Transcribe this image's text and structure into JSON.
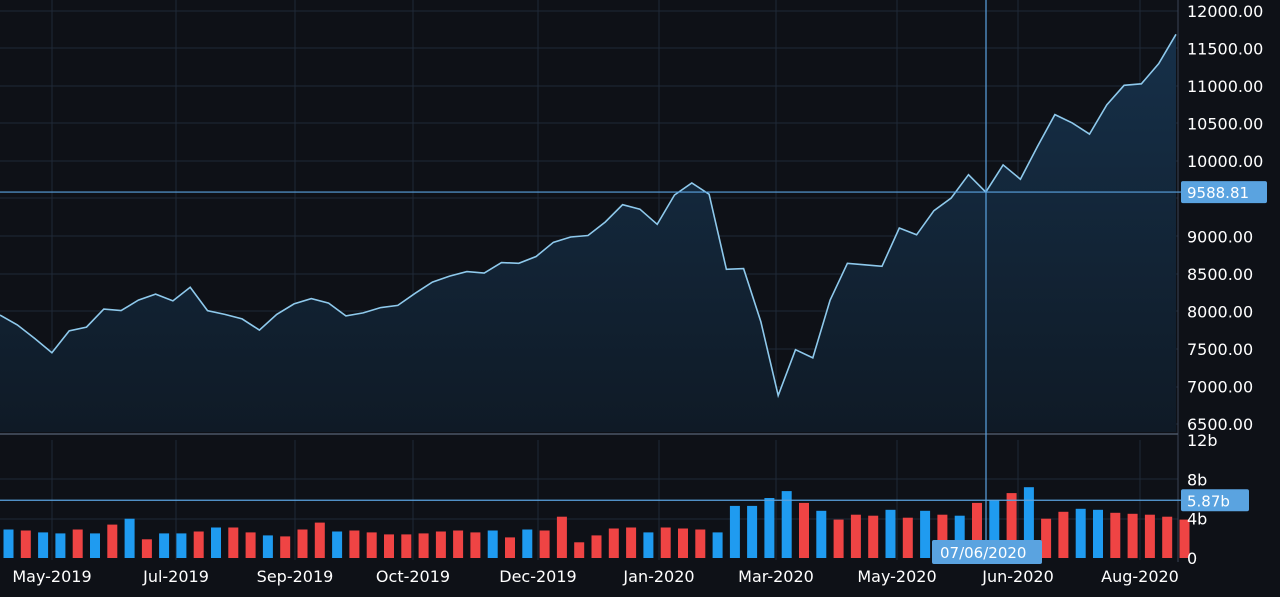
{
  "colors": {
    "background": "#0e1117",
    "grid": "#1f2937",
    "line": "#8ec9ec",
    "area_top": "#163049",
    "area_bottom": "#0f1a26",
    "crosshair": "#5aa3e0",
    "volume_up": "#1f9bf0",
    "volume_down": "#ef4444",
    "axis_text": "#ffffff",
    "label_bg": "#5aa3e0"
  },
  "chart_data": [
    {
      "type": "area",
      "x_tick_labels": [
        "May-2019",
        "Jul-2019",
        "Sep-2019",
        "Oct-2019",
        "Dec-2019",
        "Jan-2020",
        "Mar-2020",
        "May-2020",
        "Jun-2020",
        "Aug-2020"
      ],
      "y_tick_labels": [
        "12000.00",
        "11500.00",
        "11000.00",
        "10500.00",
        "10000.00",
        "9000.00",
        "8500.00",
        "8000.00",
        "7500.00",
        "7000.00",
        "6500.00"
      ],
      "ylim": [
        6500,
        12000
      ],
      "values": [
        7950,
        7820,
        7640,
        7450,
        7740,
        7790,
        8030,
        8010,
        8150,
        8230,
        8140,
        8320,
        8010,
        7960,
        7900,
        7750,
        7960,
        8100,
        8170,
        8110,
        7940,
        7980,
        8050,
        8080,
        8240,
        8390,
        8470,
        8530,
        8510,
        8650,
        8640,
        8730,
        8920,
        8990,
        9010,
        9190,
        9420,
        9360,
        9160,
        9550,
        9710,
        9560,
        8560,
        8570,
        7860,
        6880,
        7490,
        7380,
        8150,
        8640,
        8620,
        8600,
        9110,
        9020,
        9340,
        9510,
        9820,
        9588.81,
        9950,
        9760,
        10200,
        10620,
        10510,
        10360,
        10750,
        11010,
        11030,
        11300,
        11690
      ],
      "crosshair_value_label": "9588.81",
      "grid": true
    },
    {
      "type": "bar",
      "y_tick_labels": [
        "12b",
        "8b",
        "4b",
        "0"
      ],
      "ylim": [
        0,
        12
      ],
      "unit": "b",
      "values": [
        2.9,
        2.8,
        2.6,
        2.5,
        2.9,
        2.5,
        3.4,
        4.0,
        1.9,
        2.5,
        2.5,
        2.7,
        3.1,
        3.1,
        2.6,
        2.3,
        2.2,
        2.9,
        3.6,
        2.7,
        2.8,
        2.6,
        2.4,
        2.4,
        2.5,
        2.7,
        2.8,
        2.6,
        2.8,
        2.1,
        2.9,
        2.8,
        4.2,
        1.6,
        2.3,
        3.0,
        3.1,
        2.6,
        3.1,
        3.0,
        2.9,
        2.6,
        5.3,
        5.3,
        6.1,
        6.8,
        5.6,
        4.8,
        3.9,
        4.4,
        4.3,
        4.9,
        4.1,
        4.8,
        4.4,
        4.3,
        5.6,
        5.9,
        6.6,
        7.2,
        4.0,
        4.7,
        5.0,
        4.9,
        4.6,
        4.5,
        4.4,
        4.2,
        3.9
      ],
      "up": [
        true,
        false,
        true,
        true,
        false,
        true,
        false,
        true,
        false,
        true,
        true,
        false,
        true,
        false,
        false,
        true,
        false,
        false,
        false,
        true,
        false,
        false,
        false,
        false,
        false,
        false,
        false,
        false,
        true,
        false,
        true,
        false,
        false,
        false,
        false,
        false,
        false,
        true,
        false,
        false,
        false,
        true,
        true,
        true,
        true,
        true,
        false,
        true,
        false,
        false,
        false,
        true,
        false,
        true,
        false,
        true,
        false,
        true,
        false,
        true,
        false,
        false,
        true,
        true,
        false,
        false,
        false,
        false,
        false
      ],
      "crosshair_value_label": "5.87b"
    }
  ],
  "crosshair": {
    "date_label": "07/06/2020"
  }
}
